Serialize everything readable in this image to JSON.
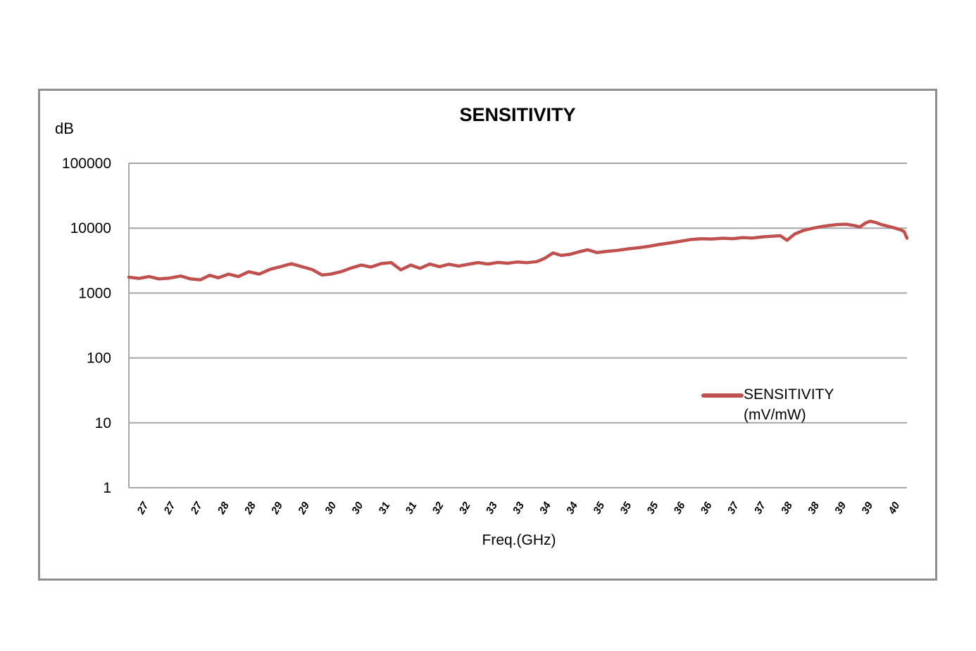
{
  "chart": {
    "title": "SENSITIVITY",
    "y_unit": "dB",
    "x_axis_title": "Freq.(GHz)",
    "legend": {
      "line1": "SENSITIVITY",
      "line2": "(mV/mW)"
    }
  },
  "colors": {
    "series": "#C0504D",
    "grid": "#A6A6A6",
    "axis": "#A6A6A6",
    "frame": "#8F8F8F"
  },
  "chart_data": {
    "type": "line",
    "title": "SENSITIVITY",
    "xlabel": "Freq.(GHz)",
    "ylabel": "dB",
    "y_scale": "log",
    "ylim": [
      1,
      100000
    ],
    "y_tick_labels": [
      "1",
      "10",
      "100",
      "1000",
      "10000",
      "100000"
    ],
    "xlim": [
      27,
      40.5
    ],
    "x_tick_labels": [
      "27",
      "27",
      "27",
      "28",
      "28",
      "29",
      "29",
      "30",
      "30",
      "31",
      "31",
      "32",
      "32",
      "33",
      "33",
      "34",
      "34",
      "35",
      "35",
      "35",
      "36",
      "36",
      "37",
      "37",
      "38",
      "38",
      "39",
      "39",
      "40"
    ],
    "grid": "horizontal",
    "legend_position": "middle-right",
    "series": [
      {
        "name": "SENSITIVITY (mV/mW)",
        "color": "#C0504D",
        "points": [
          [
            27.0,
            1760
          ],
          [
            27.18,
            1680
          ],
          [
            27.35,
            1800
          ],
          [
            27.52,
            1650
          ],
          [
            27.7,
            1700
          ],
          [
            27.9,
            1830
          ],
          [
            28.07,
            1650
          ],
          [
            28.24,
            1600
          ],
          [
            28.4,
            1880
          ],
          [
            28.55,
            1720
          ],
          [
            28.73,
            1960
          ],
          [
            28.9,
            1800
          ],
          [
            29.08,
            2130
          ],
          [
            29.26,
            1960
          ],
          [
            29.45,
            2320
          ],
          [
            29.63,
            2550
          ],
          [
            29.82,
            2830
          ],
          [
            30.0,
            2550
          ],
          [
            30.18,
            2300
          ],
          [
            30.35,
            1900
          ],
          [
            30.5,
            1960
          ],
          [
            30.68,
            2130
          ],
          [
            30.86,
            2430
          ],
          [
            31.03,
            2700
          ],
          [
            31.2,
            2520
          ],
          [
            31.38,
            2850
          ],
          [
            31.55,
            2950
          ],
          [
            31.72,
            2280
          ],
          [
            31.89,
            2700
          ],
          [
            32.05,
            2400
          ],
          [
            32.22,
            2800
          ],
          [
            32.39,
            2550
          ],
          [
            32.55,
            2780
          ],
          [
            32.72,
            2600
          ],
          [
            32.89,
            2780
          ],
          [
            33.06,
            2950
          ],
          [
            33.23,
            2800
          ],
          [
            33.4,
            2960
          ],
          [
            33.57,
            2880
          ],
          [
            33.74,
            3010
          ],
          [
            33.91,
            2940
          ],
          [
            34.08,
            3050
          ],
          [
            34.22,
            3450
          ],
          [
            34.36,
            4150
          ],
          [
            34.5,
            3800
          ],
          [
            34.65,
            3950
          ],
          [
            34.8,
            4300
          ],
          [
            34.96,
            4650
          ],
          [
            35.12,
            4200
          ],
          [
            35.3,
            4400
          ],
          [
            35.48,
            4550
          ],
          [
            35.66,
            4800
          ],
          [
            35.84,
            5000
          ],
          [
            36.02,
            5250
          ],
          [
            36.2,
            5600
          ],
          [
            36.4,
            5950
          ],
          [
            36.58,
            6300
          ],
          [
            36.76,
            6700
          ],
          [
            36.94,
            6850
          ],
          [
            37.12,
            6800
          ],
          [
            37.3,
            7000
          ],
          [
            37.48,
            6900
          ],
          [
            37.65,
            7150
          ],
          [
            37.82,
            7050
          ],
          [
            38.0,
            7350
          ],
          [
            38.15,
            7500
          ],
          [
            38.3,
            7650
          ],
          [
            38.42,
            6500
          ],
          [
            38.55,
            8100
          ],
          [
            38.7,
            9200
          ],
          [
            38.85,
            9900
          ],
          [
            39.0,
            10500
          ],
          [
            39.15,
            11000
          ],
          [
            39.3,
            11400
          ],
          [
            39.45,
            11500
          ],
          [
            39.6,
            10900
          ],
          [
            39.68,
            10400
          ],
          [
            39.78,
            12000
          ],
          [
            39.86,
            12800
          ],
          [
            39.95,
            12300
          ],
          [
            40.05,
            11400
          ],
          [
            40.15,
            10800
          ],
          [
            40.28,
            10100
          ],
          [
            40.38,
            9500
          ],
          [
            40.45,
            8900
          ],
          [
            40.5,
            7000
          ]
        ]
      }
    ]
  }
}
